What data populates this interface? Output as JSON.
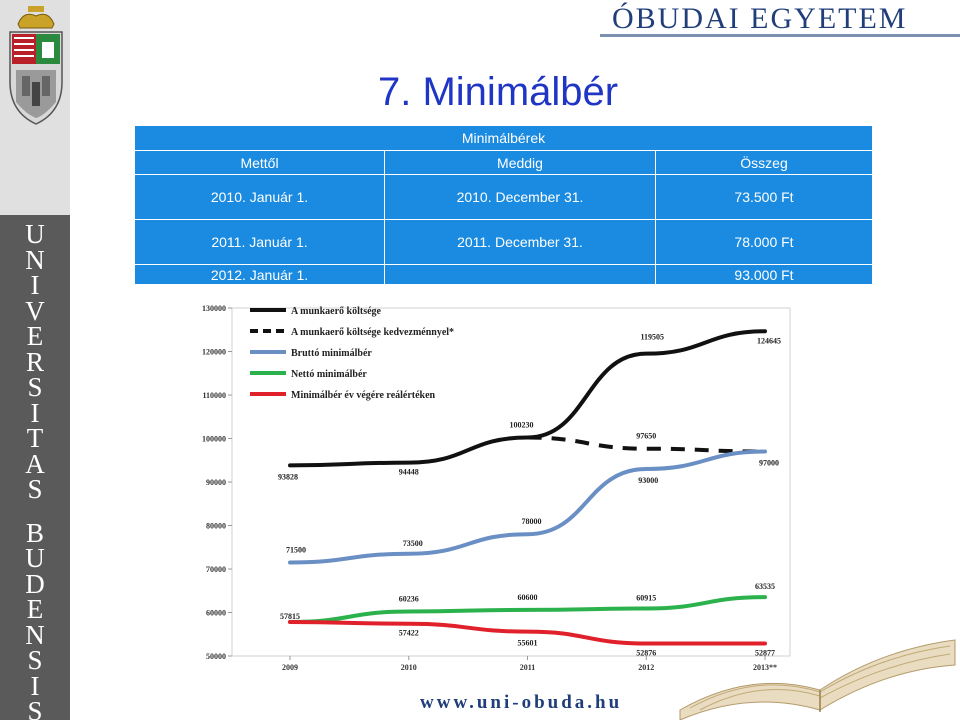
{
  "header": {
    "brand": "ÓBUDAI EGYETEM",
    "title": "7. Minimálbér"
  },
  "sidebar": {
    "letters_top": [
      "U",
      "N",
      "I",
      "V",
      "E",
      "R",
      "S",
      "I",
      "T",
      "A",
      "S"
    ],
    "letters_bottom": [
      "B",
      "U",
      "D",
      "E",
      "N",
      "S",
      "I",
      "S"
    ]
  },
  "table": {
    "caption": "Minimálbérek",
    "headers": [
      "Mettől",
      "Meddig",
      "Összeg"
    ],
    "rows": [
      [
        "2010. Január 1.",
        "2010. December 31.",
        "73.500 Ft"
      ],
      [
        "2011. Január 1.",
        "2011. December 31.",
        "78.000 Ft"
      ],
      [
        "2012. Január 1.",
        "",
        "93.000 Ft"
      ]
    ]
  },
  "chart_data": {
    "type": "line",
    "x": [
      "2009",
      "2010",
      "2011",
      "2012",
      "2013**"
    ],
    "yticks": [
      "50000",
      "60000",
      "70000",
      "80000",
      "90000",
      "100000",
      "110000",
      "120000",
      "130000"
    ],
    "ylim": [
      50000,
      130000
    ],
    "legend_position": "top-left",
    "series": [
      {
        "name": "A munkaerő költsége",
        "color": "#111111",
        "dashed": false,
        "values": [
          93828,
          94448,
          100230,
          119505,
          124645
        ],
        "labels": [
          "93828",
          "94448",
          "100230",
          "119505",
          "124645"
        ]
      },
      {
        "name": "A munkaerő költsége kedvezménnyel*",
        "color": "#111111",
        "dashed": true,
        "values": [
          null,
          null,
          100230,
          97650,
          97000
        ],
        "labels": [
          "",
          "",
          "",
          "97650",
          ""
        ]
      },
      {
        "name": "Bruttó minimálbér",
        "color": "#6a8fc4",
        "dashed": false,
        "values": [
          71500,
          73500,
          78000,
          93000,
          97000
        ],
        "labels": [
          "71500",
          "73500",
          "78000",
          "93000",
          "97000"
        ]
      },
      {
        "name": "Nettó minimálbér",
        "color": "#2bb24c",
        "dashed": false,
        "values": [
          57815,
          60236,
          60600,
          60915,
          63535
        ],
        "labels": [
          "",
          "60236",
          "60600",
          "60915",
          "63535"
        ]
      },
      {
        "name": "Minimálbér év végére reálértéken",
        "color": "#e0202a",
        "dashed": false,
        "values": [
          57815,
          57422,
          55601,
          52876,
          52877
        ],
        "labels": [
          "57815",
          "57422",
          "55601",
          "52876",
          "52877"
        ]
      }
    ]
  },
  "footer": {
    "url": "www.uni-obuda.hu"
  }
}
